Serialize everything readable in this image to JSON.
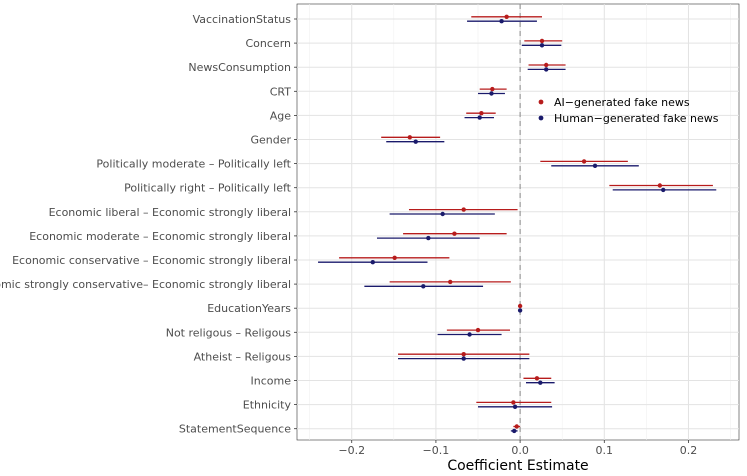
{
  "chart_data": {
    "type": "scatter",
    "subtype": "coefficient-plot",
    "title": "",
    "xlabel": "Coefficient Estimate",
    "ylabel": "",
    "xlim": [
      -0.265,
      0.26
    ],
    "xticks": [
      -0.2,
      -0.1,
      0.0,
      0.1,
      0.2
    ],
    "xtick_labels": [
      "−0.2",
      "−0.1",
      "0.0",
      "0.1",
      "0.2"
    ],
    "reference_line": 0,
    "grid": true,
    "legend_position": "right-inside",
    "categories": [
      "VaccinationStatus",
      "Concern",
      "NewsConsumption",
      "CRT",
      "Age",
      "Gender",
      "Politically moderate – Politically left",
      "Politically right – Politically left",
      "Economic liberal – Economic strongly liberal",
      "Economic moderate – Economic strongly liberal",
      "Economic conservative – Economic strongly liberal",
      "Economic strongly conservative– Economic strongly liberal",
      "EducationYears",
      "Not religous – Religous",
      "Atheist – Religous",
      "Income",
      "Ethnicity",
      "StatementSequence"
    ],
    "series": [
      {
        "name": "AI−generated fake news",
        "color": "#b71c1c",
        "estimates": [
          -0.016,
          0.026,
          0.031,
          -0.033,
          -0.046,
          -0.131,
          0.076,
          0.166,
          -0.067,
          -0.078,
          -0.149,
          -0.083,
          0.0,
          -0.05,
          -0.067,
          0.02,
          -0.008,
          -0.004
        ],
        "lower": [
          -0.058,
          0.005,
          0.01,
          -0.048,
          -0.064,
          -0.165,
          0.024,
          0.106,
          -0.132,
          -0.139,
          -0.215,
          -0.155,
          -0.001,
          -0.087,
          -0.145,
          0.004,
          -0.052,
          -0.008
        ],
        "upper": [
          0.026,
          0.05,
          0.054,
          -0.016,
          -0.029,
          -0.095,
          0.128,
          0.229,
          -0.003,
          -0.016,
          -0.084,
          -0.011,
          0.002,
          -0.012,
          0.011,
          0.037,
          0.037,
          0.0
        ]
      },
      {
        "name": "Human−generated fake news",
        "color": "#1a1a6b",
        "estimates": [
          -0.022,
          0.026,
          0.031,
          -0.034,
          -0.048,
          -0.124,
          0.089,
          0.17,
          -0.092,
          -0.109,
          -0.175,
          -0.115,
          0.0,
          -0.06,
          -0.067,
          0.024,
          -0.006,
          -0.007
        ],
        "lower": [
          -0.063,
          0.002,
          0.009,
          -0.05,
          -0.066,
          -0.159,
          0.037,
          0.11,
          -0.155,
          -0.17,
          -0.24,
          -0.185,
          -0.001,
          -0.098,
          -0.145,
          0.007,
          -0.05,
          -0.011
        ],
        "upper": [
          0.02,
          0.049,
          0.054,
          -0.018,
          -0.031,
          -0.09,
          0.141,
          0.233,
          -0.03,
          -0.048,
          -0.11,
          -0.044,
          0.002,
          -0.022,
          0.011,
          0.041,
          0.038,
          -0.003
        ]
      }
    ]
  }
}
